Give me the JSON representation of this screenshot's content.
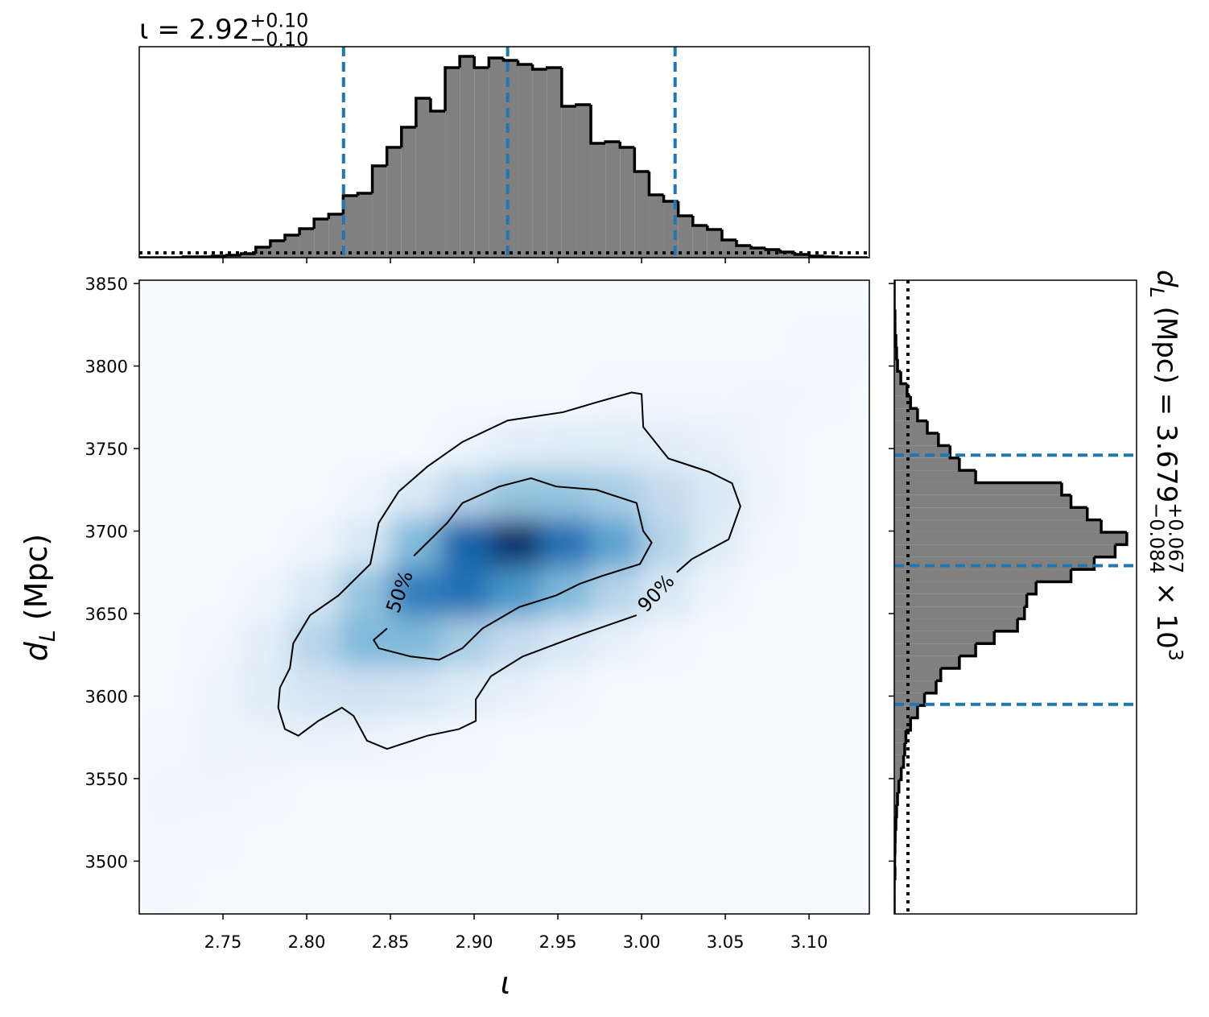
{
  "chart_data": [
    {
      "type": "heatmap",
      "xlabel": "ι",
      "ylabel": [
        {
          "text": "d",
          "italic": true
        },
        {
          "text": "L",
          "pos": "sub",
          "italic": true
        },
        {
          "text": " (Mpc)"
        }
      ],
      "xlim": [
        2.7,
        3.136
      ],
      "ylim": [
        3468,
        3852
      ],
      "xticks": [
        2.75,
        {
          "value": 2.8,
          "label": "2.80"
        },
        2.85,
        {
          "value": 2.9,
          "label": "2.90"
        },
        2.95,
        {
          "value": 3.0,
          "label": "3.00"
        },
        3.05,
        {
          "value": 3.1,
          "label": "3.10"
        }
      ],
      "yticks": [
        3500,
        3550,
        3600,
        3650,
        3700,
        3750,
        3800,
        3850
      ],
      "colormap": [
        "#f7fbff",
        "#deebf7",
        "#c6dbef",
        "#9ecae1",
        "#6baed6",
        "#4292c6",
        "#2171b5",
        "#08519c",
        "#08306b"
      ],
      "x": [
        2.715,
        2.745,
        2.775,
        2.805,
        2.835,
        2.865,
        2.895,
        2.925,
        2.955,
        2.985,
        3.015,
        3.045,
        3.075,
        3.105,
        3.135
      ],
      "y": [
        3483,
        3513,
        3543,
        3573,
        3603,
        3633,
        3663,
        3693,
        3723,
        3753,
        3783,
        3813,
        3843
      ],
      "z": [
        [
          0.02,
          0,
          0,
          0,
          0,
          0,
          0,
          0,
          0,
          0,
          0,
          0,
          0,
          0,
          0
        ],
        [
          0.03,
          0.02,
          0,
          0,
          0,
          0,
          0,
          0,
          0,
          0,
          0,
          0,
          0,
          0,
          0
        ],
        [
          0.04,
          0.04,
          0.03,
          0,
          0,
          0,
          0,
          0,
          0,
          0,
          0,
          0,
          0,
          0,
          0
        ],
        [
          0.02,
          0.05,
          0.06,
          0.07,
          0.06,
          0.04,
          0.02,
          0,
          0,
          0,
          0,
          0,
          0,
          0,
          0
        ],
        [
          0,
          0.05,
          0.12,
          0.18,
          0.2,
          0.18,
          0.12,
          0.08,
          0.04,
          0,
          0,
          0,
          0,
          0,
          0
        ],
        [
          0,
          0.03,
          0.1,
          0.3,
          0.45,
          0.45,
          0.35,
          0.25,
          0.15,
          0.08,
          0.03,
          0,
          0,
          0,
          0
        ],
        [
          0,
          0,
          0.05,
          0.15,
          0.4,
          0.7,
          0.75,
          0.6,
          0.45,
          0.3,
          0.15,
          0.05,
          0,
          0,
          0
        ],
        [
          0,
          0,
          0,
          0.05,
          0.15,
          0.45,
          0.8,
          1.0,
          0.75,
          0.55,
          0.3,
          0.12,
          0.03,
          0,
          0
        ],
        [
          0,
          0,
          0,
          0,
          0.05,
          0.15,
          0.3,
          0.4,
          0.4,
          0.35,
          0.25,
          0.15,
          0.05,
          0,
          0
        ],
        [
          0,
          0,
          0,
          0,
          0,
          0,
          0.05,
          0.1,
          0.12,
          0.12,
          0.1,
          0.08,
          0.04,
          0,
          0
        ],
        [
          0,
          0,
          0,
          0,
          0,
          0,
          0,
          0,
          0,
          0.03,
          0.03,
          0.03,
          0.04,
          0.03,
          0
        ],
        [
          0,
          0,
          0,
          0,
          0,
          0,
          0,
          0,
          0,
          0,
          0,
          0,
          0,
          0.02,
          0.02
        ],
        [
          0,
          0,
          0,
          0,
          0,
          0,
          0,
          0,
          0,
          0,
          0,
          0,
          0,
          0,
          0
        ]
      ],
      "contours": [
        {
          "label": "50%",
          "color": "#000000",
          "x": [
            2.864,
            2.876,
            2.884,
            2.893,
            2.915,
            2.934,
            2.949,
            2.973,
            2.997,
            3.001,
            3.006,
            2.999,
            2.977,
            2.963,
            2.949,
            2.927,
            2.905,
            2.893,
            2.879,
            2.862,
            2.843,
            2.84,
            2.848
          ],
          "y": [
            3685,
            3697,
            3705,
            3717,
            3727,
            3732,
            3727,
            3725,
            3717,
            3700,
            3693,
            3680,
            3673,
            3668,
            3661,
            3654,
            3641,
            3629,
            3622,
            3624,
            3629,
            3634,
            3641
          ]
        },
        {
          "label": "90%",
          "color": "#000000",
          "x": [
            2.997,
            2.963,
            2.929,
            2.91,
            2.901,
            2.901,
            2.891,
            2.872,
            2.848,
            2.836,
            2.828,
            2.821,
            2.807,
            2.795,
            2.787,
            2.783,
            2.784,
            2.79,
            2.792,
            2.802,
            2.819,
            2.838,
            2.843,
            2.855,
            2.872,
            2.893,
            2.92,
            2.953,
            2.973,
            2.994,
            3.0,
            3.001,
            3.016,
            3.04,
            3.054,
            3.059,
            3.052,
            3.03,
            3.021
          ],
          "y": [
            3649,
            3637,
            3624,
            3612,
            3598,
            3585,
            3580,
            3576,
            3568,
            3573,
            3588,
            3593,
            3585,
            3576,
            3580,
            3593,
            3605,
            3617,
            3632,
            3649,
            3661,
            3680,
            3705,
            3724,
            3739,
            3754,
            3767,
            3772,
            3778,
            3784,
            3783,
            3763,
            3744,
            3736,
            3729,
            3715,
            3695,
            3683,
            3675
          ]
        }
      ]
    },
    {
      "type": "histogram",
      "title": [
        {
          "text": "ι = 2.92"
        },
        {
          "text": "+0.10",
          "pos": "sup"
        },
        {
          "text": "−0.10",
          "pos": "sub"
        }
      ],
      "xlim": [
        2.7,
        3.136
      ],
      "ylim": [
        0,
        1.048
      ],
      "color": "#808080",
      "edgecolor": "#000000",
      "bins": [
        2.7,
        2.7087,
        2.7174,
        2.7261,
        2.7348,
        2.7435,
        2.7522,
        2.7609,
        2.7696,
        2.7783,
        2.787,
        2.7957,
        2.8044,
        2.8131,
        2.8218,
        2.8305,
        2.8392,
        2.8479,
        2.8566,
        2.8653,
        2.874,
        2.8827,
        2.8914,
        2.9001,
        2.9088,
        2.9175,
        2.9262,
        2.9349,
        2.9436,
        2.9523,
        2.961,
        2.9697,
        2.9784,
        2.9871,
        2.9958,
        3.0045,
        3.0132,
        3.0219,
        3.0306,
        3.0393,
        3.048,
        3.0567,
        3.0654,
        3.0741,
        3.0828,
        3.0915,
        3.1002,
        3.1089,
        3.1176,
        3.1263,
        3.135
      ],
      "values": [
        0,
        0,
        0,
        0.004,
        0.004,
        0.008,
        0.012,
        0.02,
        0.052,
        0.084,
        0.112,
        0.144,
        0.192,
        0.216,
        0.308,
        0.32,
        0.456,
        0.548,
        0.648,
        0.792,
        0.728,
        0.944,
        1.0,
        0.944,
        0.992,
        0.98,
        0.96,
        0.936,
        0.944,
        0.752,
        0.76,
        0.568,
        0.576,
        0.548,
        0.428,
        0.312,
        0.28,
        0.208,
        0.16,
        0.14,
        0.088,
        0.06,
        0.048,
        0.04,
        0.028,
        0.016,
        0.008,
        0.004,
        0,
        0
      ],
      "quantiles": [
        2.822,
        2.92,
        3.02
      ],
      "quantile_color": "#1f77b4",
      "reference_line": 0.024
    },
    {
      "type": "histogram",
      "orientation": "horizontal",
      "title": [
        {
          "text": "d",
          "italic": true
        },
        {
          "text": "L",
          "pos": "sub",
          "italic": true
        },
        {
          "text": " (Mpc) = 3.679"
        },
        {
          "text": "+0.067",
          "pos": "sup"
        },
        {
          "text": "−0.084",
          "pos": "sub"
        },
        {
          "text": " × 10"
        },
        {
          "text": "3",
          "pos": "sup"
        }
      ],
      "xlim": [
        0,
        1.042
      ],
      "ylim": [
        3468,
        3852
      ],
      "color": "#808080",
      "edgecolor": "#000000",
      "bins": [
        3466.8,
        3474.3,
        3481.8,
        3489.3,
        3496.8,
        3504.3,
        3511.8,
        3519.3,
        3526.8,
        3534.3,
        3541.8,
        3549.3,
        3556.8,
        3564.3,
        3571.8,
        3579.3,
        3586.8,
        3594.3,
        3601.8,
        3609.3,
        3616.8,
        3624.3,
        3631.8,
        3639.3,
        3646.8,
        3654.3,
        3661.8,
        3669.3,
        3676.8,
        3684.3,
        3691.8,
        3699.3,
        3706.8,
        3714.3,
        3721.8,
        3729.3,
        3736.8,
        3744.3,
        3751.8,
        3759.3,
        3766.8,
        3774.3,
        3781.8,
        3789.3,
        3796.8,
        3804.3,
        3811.8,
        3819.3,
        3826.8,
        3834.3,
        3841.8,
        3849.3,
        3856.8
      ],
      "values": [
        0,
        0,
        0,
        0.003,
        0.002,
        0.003,
        0.004,
        0.007,
        0.01,
        0.014,
        0.02,
        0.03,
        0.04,
        0.045,
        0.05,
        0.07,
        0.1,
        0.13,
        0.18,
        0.2,
        0.28,
        0.35,
        0.43,
        0.53,
        0.56,
        0.57,
        0.61,
        0.76,
        0.86,
        0.95,
        1.0,
        0.89,
        0.83,
        0.76,
        0.72,
        0.35,
        0.28,
        0.24,
        0.19,
        0.142,
        0.1,
        0.07,
        0.055,
        0.028,
        0.014,
        0.01,
        0.007,
        0.003,
        0.003,
        0,
        0,
        0
      ],
      "quantiles": [
        3595,
        3679,
        3746
      ],
      "quantile_color": "#1f77b4",
      "reference_line": 0.059
    }
  ]
}
